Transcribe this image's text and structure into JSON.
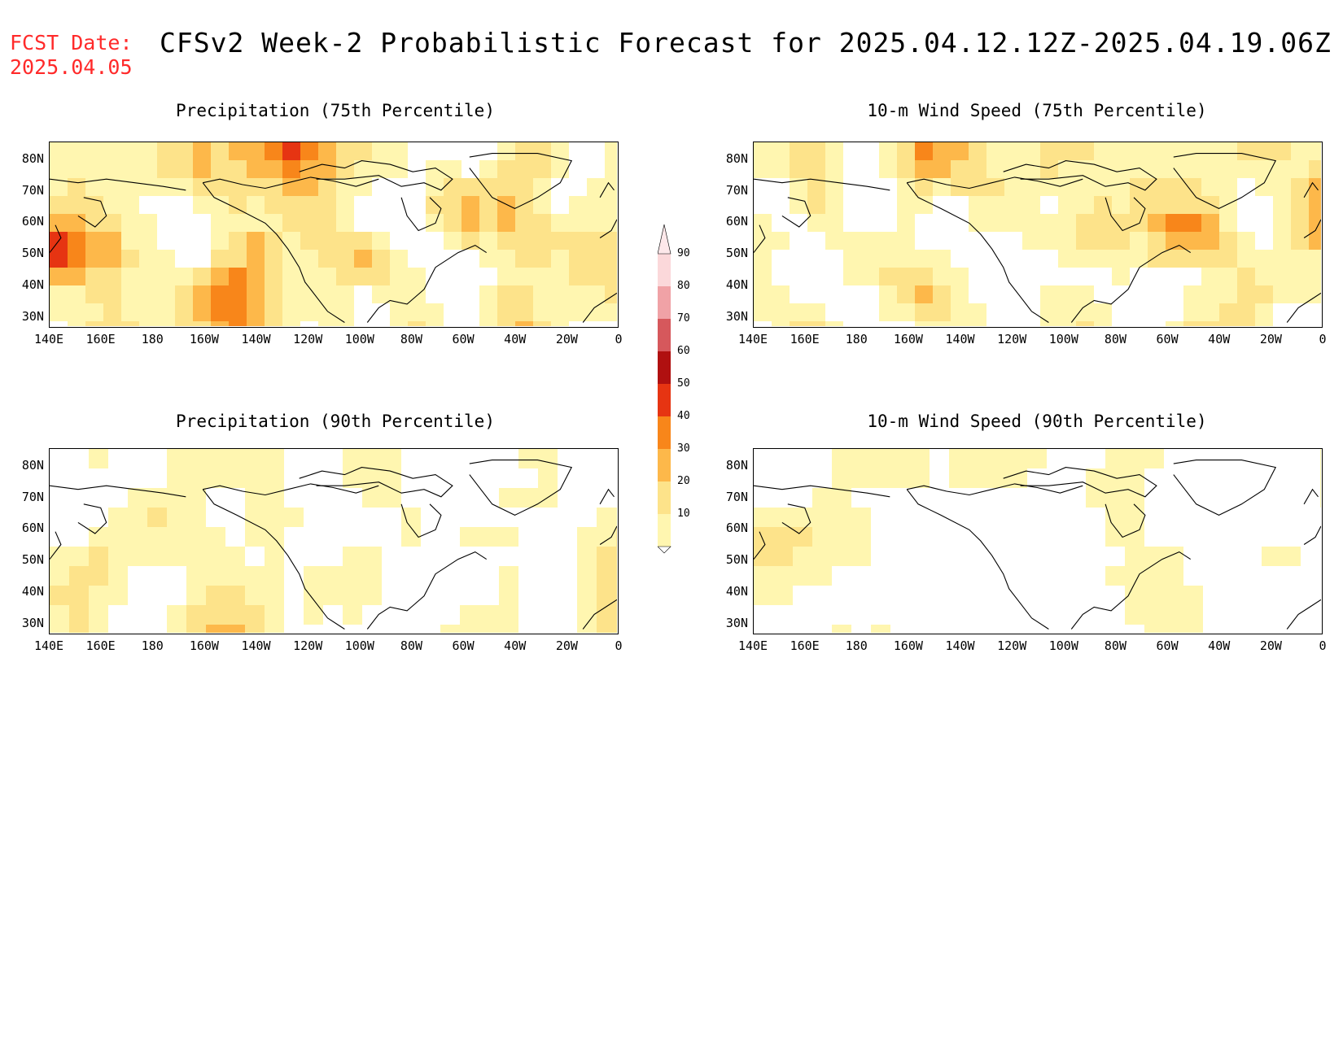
{
  "header": {
    "fcst_label": "FCST Date:",
    "fcst_date": "2025.04.05",
    "title": "CFSv2 Week-2 Probabilistic Forecast for 2025.04.12.12Z-2025.04.19.06Z"
  },
  "panels": [
    {
      "id": "precip75",
      "title": "Precipitation (75th Percentile)",
      "intensity": "high"
    },
    {
      "id": "wind75",
      "title": "10-m Wind Speed (75th Percentile)",
      "intensity": "med"
    },
    {
      "id": "precip90",
      "title": "Precipitation (90th Percentile)",
      "intensity": "low"
    },
    {
      "id": "wind90",
      "title": "10-m Wind Speed (90th Percentile)",
      "intensity": "verylow"
    }
  ],
  "axes": {
    "lat_labels": [
      "80N",
      "70N",
      "60N",
      "50N",
      "40N",
      "30N"
    ],
    "lon_labels": [
      "140E",
      "160E",
      "180",
      "160W",
      "140W",
      "120W",
      "100W",
      "80W",
      "60W",
      "40W",
      "20W",
      "0"
    ]
  },
  "colorbar": {
    "levels": [
      "10",
      "20",
      "30",
      "40",
      "50",
      "60",
      "70",
      "80",
      "90"
    ],
    "colors": [
      "#fff6b0",
      "#fde38a",
      "#fdb84a",
      "#f8861a",
      "#e63412",
      "#b01010",
      "#d6585c",
      "#f0a2a6",
      "#fbd8da"
    ]
  }
}
